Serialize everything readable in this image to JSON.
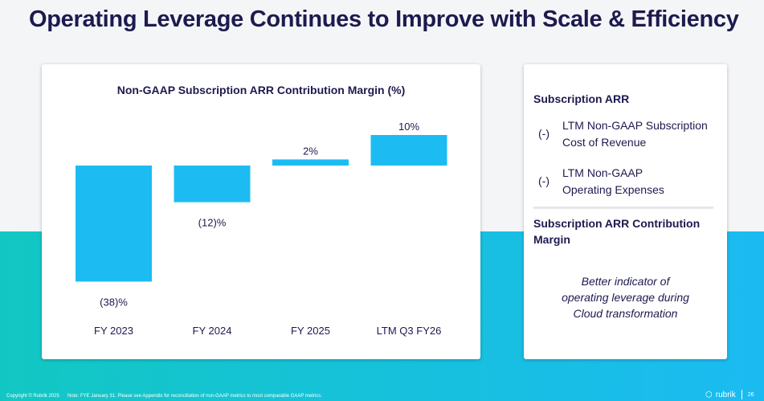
{
  "title": "Operating Leverage Continues to Improve with Scale & Efficiency",
  "chart_data": {
    "type": "bar",
    "title": "Non-GAAP Subscription ARR Contribution Margin (%)",
    "categories": [
      "FY 2023",
      "FY 2024",
      "FY 2025",
      "LTM Q3 FY26"
    ],
    "values": [
      -38,
      -12,
      2,
      10
    ],
    "data_labels": [
      "(38)%",
      "(12)%",
      "2%",
      "10%"
    ],
    "bar_color": "#1cbcf3",
    "grid": false
  },
  "panel": {
    "heading": "Subscription ARR",
    "items": [
      {
        "sign": "(-)",
        "line1": "LTM Non-GAAP Subscription",
        "line2": "Cost of Revenue"
      },
      {
        "sign": "(-)",
        "line1": "LTM Non-GAAP",
        "line2": "Operating Expenses"
      }
    ],
    "result_line1": "Subscription ARR Contribution",
    "result_line2": "Margin",
    "note_lines": [
      "Better indicator of",
      "operating leverage during",
      "Cloud transformation"
    ]
  },
  "footer": {
    "copyright": "Copyright © Rubrik 2025",
    "note": "Note: FYE January 31. Please see Appendix for reconciliation of non-GAAP metrics to most comparable GAAP metrics.",
    "logo": "rubrik",
    "page": "26"
  }
}
